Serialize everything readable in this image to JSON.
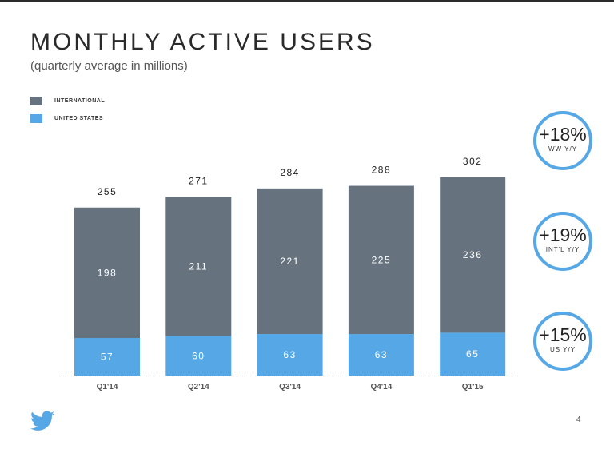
{
  "title": "MONTHLY ACTIVE USERS",
  "subtitle": "(quarterly average in millions)",
  "legend": [
    {
      "label": "INTERNATIONAL",
      "color": "#66737f"
    },
    {
      "label": "UNITED STATES",
      "color": "#55a7e6"
    }
  ],
  "chart_data": {
    "type": "bar",
    "stacked": true,
    "title": "MONTHLY ACTIVE USERS",
    "subtitle": "(quarterly average in millions)",
    "xlabel": "",
    "ylabel": "",
    "categories": [
      "Q1'14",
      "Q2'14",
      "Q3'14",
      "Q4'14",
      "Q1'15"
    ],
    "series": [
      {
        "name": "UNITED STATES",
        "color": "#55a7e6",
        "values": [
          57,
          60,
          63,
          63,
          65
        ]
      },
      {
        "name": "INTERNATIONAL",
        "color": "#66737f",
        "values": [
          198,
          211,
          221,
          225,
          236
        ]
      }
    ],
    "totals": [
      255,
      271,
      284,
      288,
      302
    ],
    "ylim": [
      0,
      302
    ],
    "grid": false,
    "legend_position": "top-left"
  },
  "badges": [
    {
      "value": "+18%",
      "label": "WW Y/Y"
    },
    {
      "value": "+19%",
      "label": "INT'L Y/Y"
    },
    {
      "value": "+15%",
      "label": "US Y/Y"
    }
  ],
  "footer": {
    "logo": "twitter-bird-icon",
    "page_number": "4"
  }
}
